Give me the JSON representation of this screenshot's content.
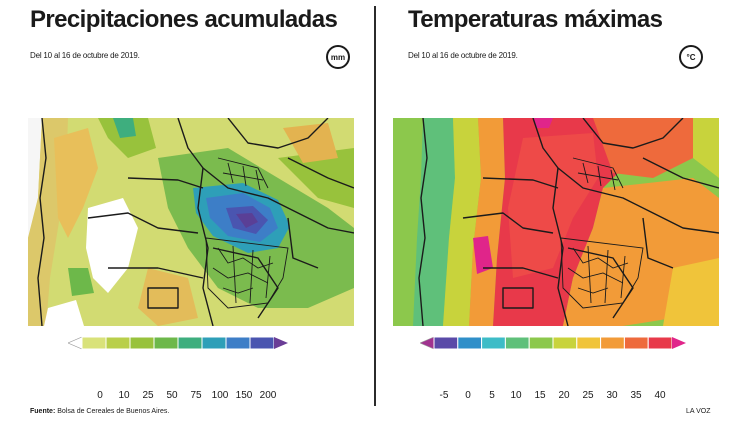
{
  "left_panel": {
    "title": "Precipitaciones acumuladas",
    "subtitle": "Del 10 al 16 de octubre de 2019.",
    "unit": "mm",
    "scale": {
      "colors": [
        "#ffffff",
        "#d9e27a",
        "#b9cf4a",
        "#98c23c",
        "#6db84a",
        "#3eae7e",
        "#2e9fb8",
        "#3d7ec7",
        "#4a55b0",
        "#6a3d96"
      ],
      "ticks": [
        "0",
        "10",
        "25",
        "50",
        "75",
        "100",
        "150",
        "200"
      ]
    }
  },
  "right_panel": {
    "title": "Temperaturas máximas",
    "subtitle": "Del 10 al 16 de octubre de 2019.",
    "unit": "°C",
    "scale": {
      "colors": [
        "#a0338f",
        "#5a4aa8",
        "#2f8fc9",
        "#3dbcc7",
        "#5fc07a",
        "#8cc84c",
        "#c8d33c",
        "#f0c43a",
        "#f29b38",
        "#ee6a3c",
        "#e8394a",
        "#e0258a"
      ],
      "ticks": [
        "-5",
        "0",
        "5",
        "10",
        "15",
        "20",
        "25",
        "30",
        "35",
        "40"
      ]
    }
  },
  "footer": {
    "source_label": "Fuente:",
    "source_text": "Bolsa de Cereales de Buenos Aires.",
    "brand": "LA VOZ"
  }
}
